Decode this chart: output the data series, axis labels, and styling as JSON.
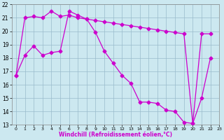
{
  "xlabel": "Windchill (Refroidissement éolien,°C)",
  "bg_color": "#cce8f0",
  "line_color": "#cc00cc",
  "line1_x": [
    0,
    1,
    2,
    3,
    4,
    5,
    6,
    7,
    8,
    9,
    10,
    11,
    12,
    13,
    14,
    15,
    16,
    17,
    18,
    19,
    20,
    21,
    22
  ],
  "line1_y": [
    16.7,
    21.0,
    21.1,
    21.0,
    21.5,
    21.1,
    21.2,
    21.0,
    20.9,
    20.8,
    20.7,
    20.6,
    20.5,
    20.4,
    20.3,
    20.2,
    20.1,
    20.0,
    19.9,
    19.8,
    13.1,
    19.8,
    19.8
  ],
  "line2_x": [
    0,
    1,
    2,
    3,
    4,
    5,
    6,
    7,
    8,
    9,
    10,
    11,
    12,
    13,
    14,
    15,
    16,
    17,
    18,
    19,
    20,
    21,
    22
  ],
  "line2_y": [
    16.7,
    18.2,
    18.9,
    18.2,
    18.4,
    18.5,
    21.5,
    21.2,
    20.9,
    19.9,
    18.5,
    17.6,
    16.7,
    16.1,
    14.7,
    14.7,
    14.6,
    14.1,
    14.0,
    13.2,
    13.1,
    15.0,
    18.0
  ],
  "xlim": [
    -0.5,
    22.5
  ],
  "ylim": [
    13,
    22
  ],
  "xticks": [
    0,
    1,
    2,
    3,
    4,
    5,
    6,
    7,
    8,
    9,
    10,
    11,
    12,
    13,
    14,
    15,
    16,
    17,
    18,
    19,
    20,
    21,
    22,
    23
  ],
  "yticks": [
    13,
    14,
    15,
    16,
    17,
    18,
    19,
    20,
    21,
    22
  ],
  "grid_color": "#99bbcc",
  "marker": "D",
  "markersize": 2.5,
  "linewidth": 0.9
}
